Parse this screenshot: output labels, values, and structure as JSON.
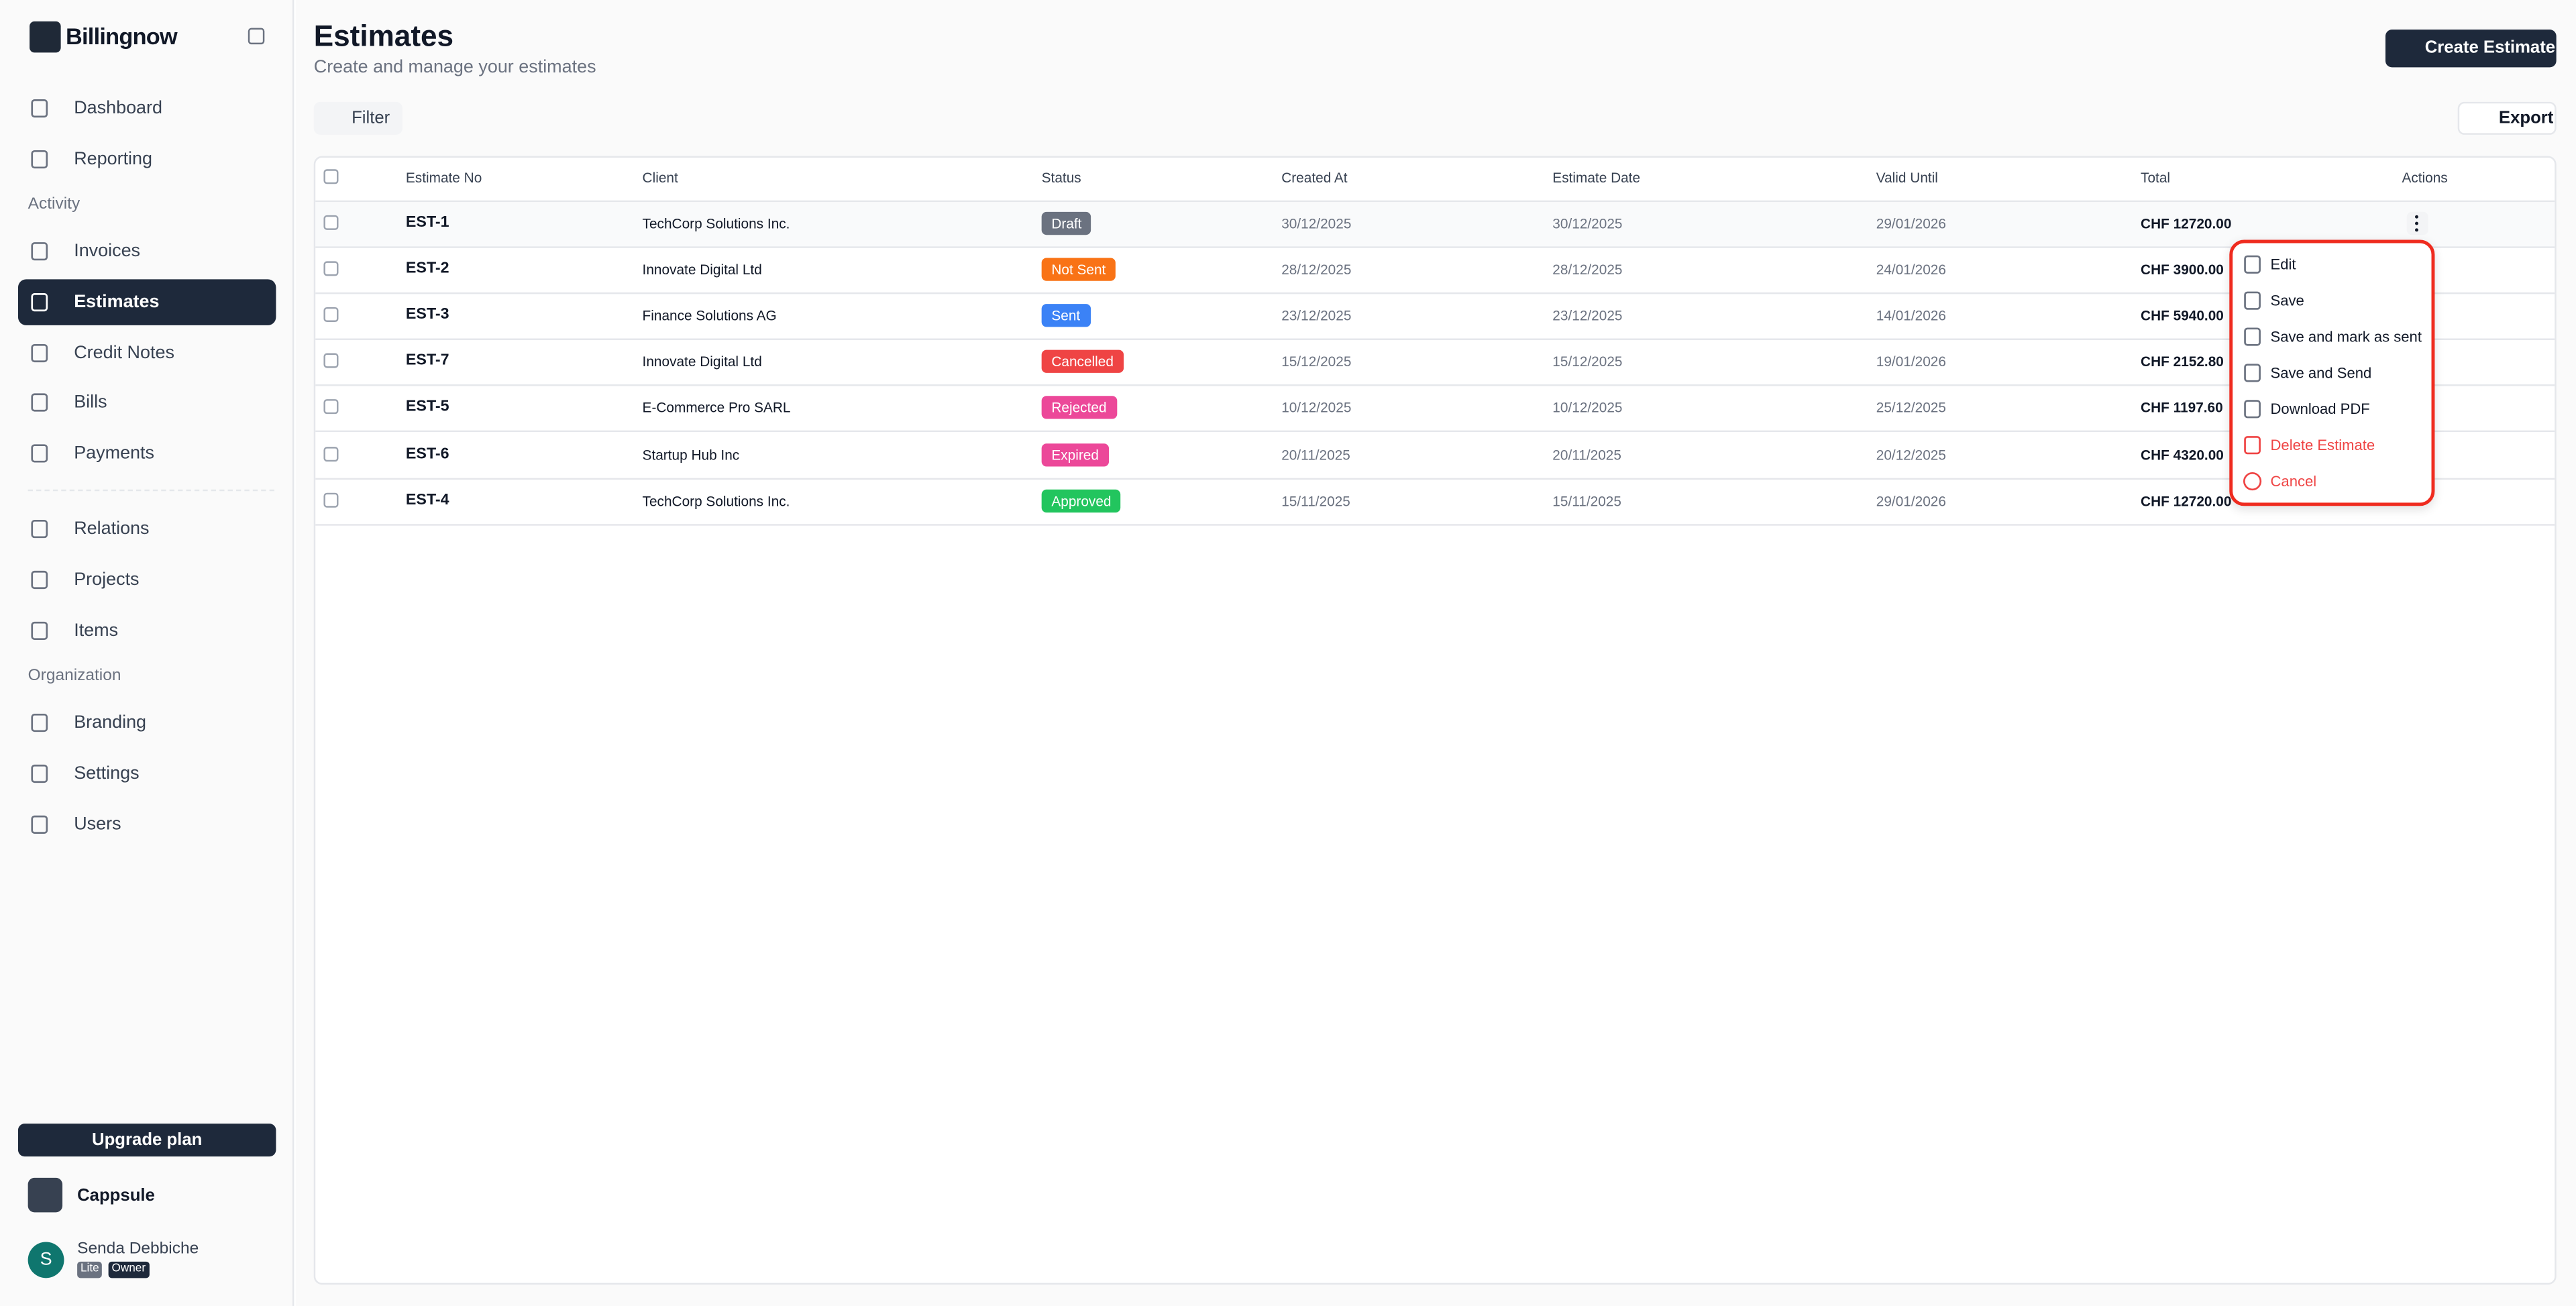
{
  "brand": "Billingnow",
  "sidebar": {
    "nav_top": [
      "Dashboard",
      "Reporting"
    ],
    "activity": {
      "title": "Activity",
      "items": [
        "Invoices",
        "Estimates",
        "Credit Notes",
        "Bills",
        "Payments"
      ]
    },
    "nav_mid": [
      "Relations",
      "Projects",
      "Items"
    ],
    "organization": {
      "title": "Organization",
      "items": [
        "Branding",
        "Settings",
        "Users"
      ]
    },
    "upgrade": "Upgrade plan",
    "workspace": "Cappsule",
    "user": {
      "initial": "S",
      "name": "Senda Debbiche",
      "badges": [
        "Lite",
        "Owner"
      ]
    }
  },
  "header": {
    "title": "Estimates",
    "subtitle": "Create and manage your estimates",
    "create": "Create Estimate"
  },
  "toolbar": {
    "filter": "Filter",
    "export": "Export"
  },
  "table": {
    "columns": [
      "Estimate No",
      "Client",
      "Status",
      "Created At",
      "Estimate Date",
      "Valid Until",
      "Total",
      "Actions"
    ],
    "rows": [
      {
        "no": "EST-1",
        "client": "TechCorp Solutions Inc.",
        "status": "Draft",
        "status_color": "#6b7280",
        "created": "30/12/2025",
        "date": "30/12/2025",
        "valid": "29/01/2026",
        "total": "CHF 12720.00"
      },
      {
        "no": "EST-2",
        "client": "Innovate Digital Ltd",
        "status": "Not Sent",
        "status_color": "#f97316",
        "created": "28/12/2025",
        "date": "28/12/2025",
        "valid": "24/01/2026",
        "total": "CHF 3900.00"
      },
      {
        "no": "EST-3",
        "client": "Finance Solutions AG",
        "status": "Sent",
        "status_color": "#3b82f6",
        "created": "23/12/2025",
        "date": "23/12/2025",
        "valid": "14/01/2026",
        "total": "CHF 5940.00"
      },
      {
        "no": "EST-7",
        "client": "Innovate Digital Ltd",
        "status": "Cancelled",
        "status_color": "#ef4444",
        "created": "15/12/2025",
        "date": "15/12/2025",
        "valid": "19/01/2026",
        "total": "CHF 2152.80"
      },
      {
        "no": "EST-5",
        "client": "E-Commerce Pro SARL",
        "status": "Rejected",
        "status_color": "#ec4899",
        "created": "10/12/2025",
        "date": "10/12/2025",
        "valid": "25/12/2025",
        "total": "CHF 1197.60"
      },
      {
        "no": "EST-6",
        "client": "Startup Hub Inc",
        "status": "Expired",
        "status_color": "#ec4899",
        "created": "20/11/2025",
        "date": "20/11/2025",
        "valid": "20/12/2025",
        "total": "CHF 4320.00"
      },
      {
        "no": "EST-4",
        "client": "TechCorp Solutions Inc.",
        "status": "Approved",
        "status_color": "#22c55e",
        "created": "15/11/2025",
        "date": "15/11/2025",
        "valid": "29/01/2026",
        "total": "CHF 12720.00"
      }
    ]
  },
  "menu": {
    "items": [
      "Edit",
      "Save",
      "Save and mark as sent",
      "Save and Send",
      "Download PDF",
      "Delete Estimate",
      "Cancel"
    ]
  }
}
